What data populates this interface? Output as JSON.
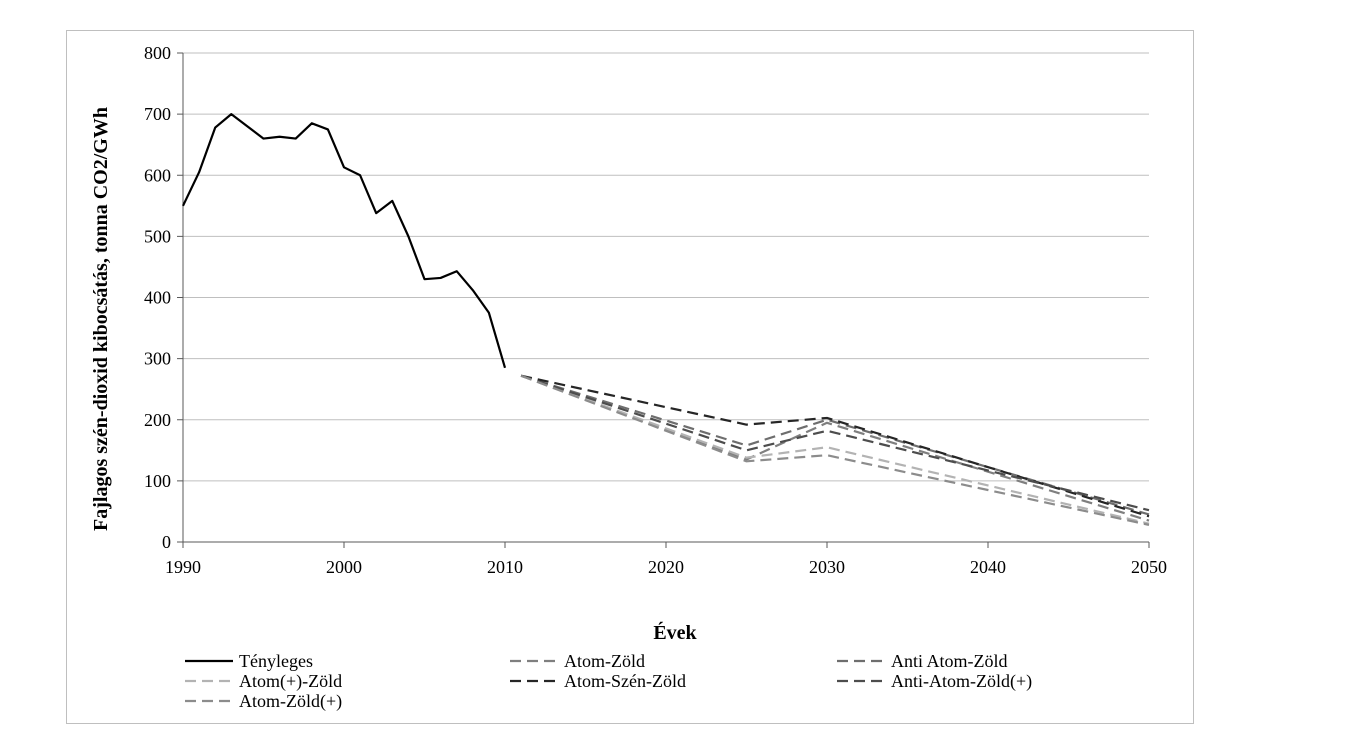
{
  "chart_data": {
    "type": "line",
    "title": "",
    "xlabel": "Évek",
    "ylabel": "Fajlagos szén-dioxid kibocsátás, tonna CO2/GWh",
    "xlim": [
      1990,
      2050
    ],
    "ylim": [
      0,
      800
    ],
    "x_ticks": [
      1990,
      2000,
      2010,
      2020,
      2030,
      2040,
      2050
    ],
    "y_ticks": [
      0,
      100,
      200,
      300,
      400,
      500,
      600,
      700,
      800
    ],
    "x_tick_labels": [
      "1990",
      "2000",
      "2010",
      "2020",
      "2030",
      "2040",
      "2050"
    ],
    "y_tick_labels": [
      "0",
      "100",
      "200",
      "300",
      "400",
      "500",
      "600",
      "700",
      "800"
    ],
    "grid": "horizontal",
    "legend_position": "bottom",
    "series": [
      {
        "name": "Tényleges",
        "style": "solid",
        "color": "#000000",
        "x": [
          1990,
          1991,
          1992,
          1993,
          1994,
          1995,
          1996,
          1997,
          1998,
          1999,
          2000,
          2001,
          2002,
          2003,
          2004,
          2005,
          2006,
          2007,
          2008,
          2009,
          2010
        ],
        "y": [
          550,
          605,
          678,
          700,
          680,
          660,
          663,
          660,
          685,
          675,
          613,
          600,
          538,
          558,
          500,
          430,
          432,
          443,
          412,
          375,
          285
        ]
      },
      {
        "name": "Atom-Zöld",
        "style": "dashed",
        "color": "#7f7f7f",
        "x": [
          2011,
          2025,
          2030,
          2050
        ],
        "y": [
          272,
          135,
          195,
          35
        ]
      },
      {
        "name": "Anti Atom-Zöld",
        "style": "dashed",
        "color": "#6e6e6e",
        "x": [
          2011,
          2025,
          2030,
          2050
        ],
        "y": [
          272,
          158,
          200,
          45
        ]
      },
      {
        "name": "Atom(+)-Zöld",
        "style": "dashed",
        "color": "#b3b3b3",
        "x": [
          2011,
          2025,
          2030,
          2050
        ],
        "y": [
          272,
          138,
          155,
          30
        ]
      },
      {
        "name": "Atom-Szén-Zöld",
        "style": "dashed",
        "color": "#262626",
        "x": [
          2011,
          2025,
          2030,
          2050
        ],
        "y": [
          272,
          192,
          203,
          42
        ]
      },
      {
        "name": "Anti-Atom-Zöld(+)",
        "style": "dashed",
        "color": "#4d4d4d",
        "x": [
          2011,
          2025,
          2030,
          2050
        ],
        "y": [
          272,
          150,
          182,
          52
        ]
      },
      {
        "name": "Atom-Zöld(+)",
        "style": "dashed",
        "color": "#8c8c8c",
        "x": [
          2011,
          2025,
          2030,
          2050
        ],
        "y": [
          272,
          132,
          142,
          28
        ]
      }
    ]
  }
}
